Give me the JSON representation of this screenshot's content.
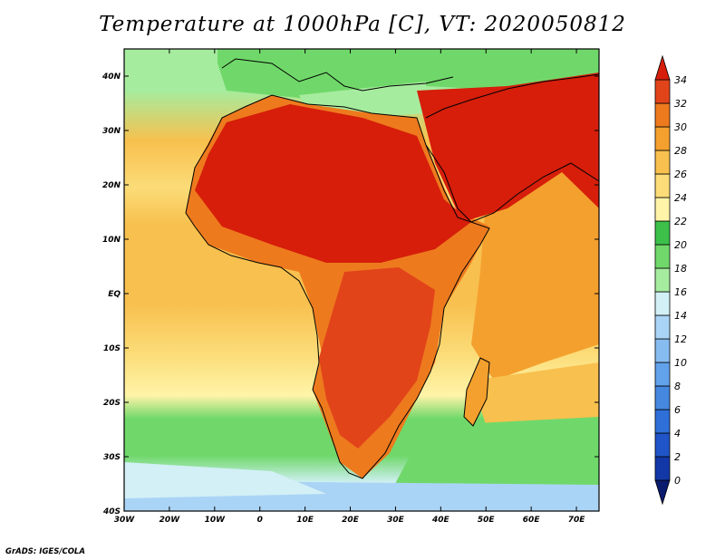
{
  "title": "Temperature at 1000hPa [C], VT: 2020050812",
  "credit": "GrADS: IGES/COLA",
  "map": {
    "lon_range": [
      -30,
      75
    ],
    "lat_range": [
      -40,
      45
    ],
    "lon_ticks": [
      {
        "value": -30,
        "label": "30W"
      },
      {
        "value": -20,
        "label": "20W"
      },
      {
        "value": -10,
        "label": "10W"
      },
      {
        "value": 0,
        "label": "0"
      },
      {
        "value": 10,
        "label": "10E"
      },
      {
        "value": 20,
        "label": "20E"
      },
      {
        "value": 30,
        "label": "30E"
      },
      {
        "value": 40,
        "label": "40E"
      },
      {
        "value": 50,
        "label": "50E"
      },
      {
        "value": 60,
        "label": "60E"
      },
      {
        "value": 70,
        "label": "70E"
      }
    ],
    "lat_ticks": [
      {
        "value": 40,
        "label": "40N"
      },
      {
        "value": 30,
        "label": "30N"
      },
      {
        "value": 20,
        "label": "20N"
      },
      {
        "value": 10,
        "label": "10N"
      },
      {
        "value": 0,
        "label": "EQ"
      },
      {
        "value": -10,
        "label": "10S"
      },
      {
        "value": -20,
        "label": "20S"
      },
      {
        "value": -30,
        "label": "30S"
      },
      {
        "value": -40,
        "label": "40S"
      }
    ]
  },
  "colorbar": {
    "labels": [
      "0",
      "2",
      "4",
      "6",
      "8",
      "10",
      "12",
      "14",
      "16",
      "18",
      "20",
      "22",
      "24",
      "26",
      "28",
      "30",
      "32",
      "34"
    ],
    "colors": [
      "#0a1a6e",
      "#1238a8",
      "#1f55c8",
      "#2f6fd8",
      "#4588e0",
      "#62a2ea",
      "#86bcf0",
      "#aad4f6",
      "#d2f0f6",
      "#a6ec9e",
      "#70d86a",
      "#3cc04a",
      "#fff4a8",
      "#fbdc78",
      "#f8c04e",
      "#f4a02e",
      "#ee7a1e",
      "#e2441a",
      "#d61e0a"
    ]
  }
}
